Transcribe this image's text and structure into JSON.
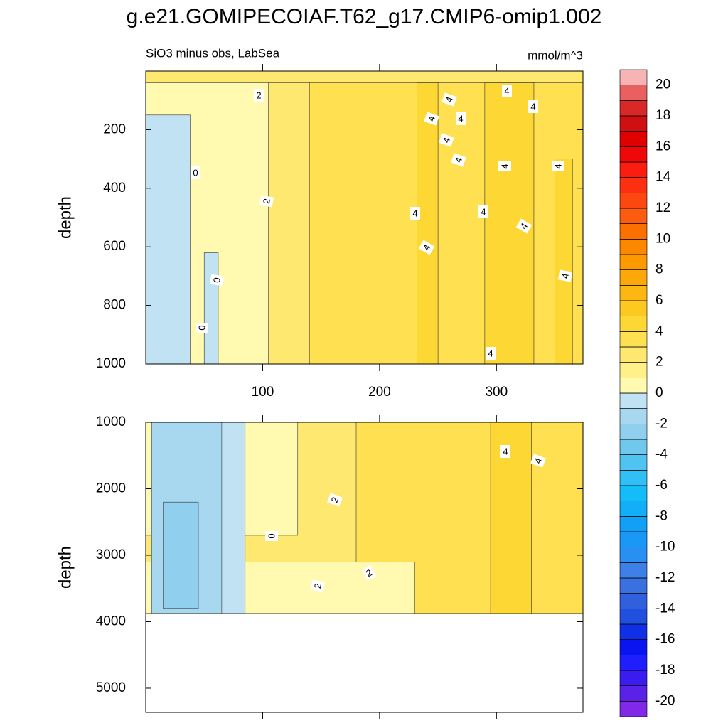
{
  "title": "g.e21.GOMIPECOIAF.T62_g17.CMIP6-omip1.002",
  "chart_data": [
    {
      "type": "contour",
      "subtitle_left": "SiO3 minus obs, LabSea",
      "subtitle_right": "mmol/m^3",
      "y_label": "depth",
      "xlim": [
        0,
        374
      ],
      "xticks": [
        100,
        200,
        300
      ],
      "ylim": [
        0,
        1000
      ],
      "yticks": [
        200,
        400,
        600,
        800,
        1000
      ],
      "fields": [
        {
          "x": [
            0,
            374
          ],
          "y": [
            0,
            1000
          ],
          "value": 3.5
        },
        {
          "x": [
            0,
            140
          ],
          "y": [
            0,
            1000
          ],
          "value": 2.5
        },
        {
          "x": [
            0,
            105
          ],
          "y": [
            0,
            1000
          ],
          "value": 0.5
        },
        {
          "x": [
            0,
            38
          ],
          "y": [
            150,
            1000
          ],
          "value": -0.5
        },
        {
          "x": [
            50,
            62
          ],
          "y": [
            620,
            1000
          ],
          "value": -0.5
        },
        {
          "x": [
            0,
            374
          ],
          "y": [
            0,
            40
          ],
          "value": 2.5
        },
        {
          "x": [
            232,
            250
          ],
          "y": [
            40,
            1000
          ],
          "value": 4.5
        },
        {
          "x": [
            290,
            332
          ],
          "y": [
            40,
            1000
          ],
          "value": 4.5
        },
        {
          "x": [
            350,
            365
          ],
          "y": [
            300,
            1000
          ],
          "value": 4.5
        }
      ],
      "contour_labels": [
        2,
        4,
        4,
        4,
        4,
        4,
        4,
        4,
        4,
        4,
        4,
        4,
        4,
        4,
        4,
        4,
        0,
        0,
        0,
        2
      ]
    },
    {
      "type": "contour",
      "y_label": "depth",
      "xlim": [
        0,
        374
      ],
      "xticks": [
        100,
        200,
        300
      ],
      "ylim": [
        1000,
        5364
      ],
      "yticks": [
        1000,
        2000,
        3000,
        4000,
        5000
      ],
      "fields": [
        {
          "x": [
            0,
            374
          ],
          "y": [
            1000,
            3875
          ],
          "value": 3.5
        },
        {
          "x": [
            0,
            180
          ],
          "y": [
            1000,
            3875
          ],
          "value": 2.5
        },
        {
          "x": [
            0,
            130
          ],
          "y": [
            1000,
            2700
          ],
          "value": 0.5
        },
        {
          "x": [
            0,
            230
          ],
          "y": [
            3100,
            3875
          ],
          "value": 0.5
        },
        {
          "x": [
            5,
            85
          ],
          "y": [
            1000,
            3875
          ],
          "value": -0.5
        },
        {
          "x": [
            5,
            65
          ],
          "y": [
            1000,
            3875
          ],
          "value": -1.5
        },
        {
          "x": [
            15,
            45
          ],
          "y": [
            2200,
            3800
          ],
          "value": -2.5
        },
        {
          "x": [
            295,
            330
          ],
          "y": [
            1000,
            3875
          ],
          "value": 4.5
        }
      ],
      "contour_labels": [
        4,
        4,
        2,
        2,
        2,
        0
      ]
    }
  ],
  "colorbar": {
    "levels": [
      -20,
      -19,
      -18,
      -17,
      -16,
      -15,
      -14,
      -13,
      -12,
      -11,
      -10,
      -9,
      -8,
      -7,
      -6,
      -5,
      -4,
      -3,
      -2,
      -1,
      0,
      1,
      2,
      3,
      4,
      5,
      6,
      7,
      8,
      9,
      10,
      11,
      12,
      13,
      14,
      15,
      16,
      17,
      18,
      19,
      20
    ],
    "labels": [
      -20,
      -18,
      -16,
      -14,
      -12,
      -10,
      -8,
      -6,
      -4,
      -2,
      0,
      2,
      4,
      6,
      8,
      10,
      12,
      14,
      16,
      18,
      20
    ],
    "colors": [
      "#8228e8",
      "#5a22e8",
      "#3a1cf0",
      "#1e1eff",
      "#0a14f0",
      "#1030e8",
      "#2050e0",
      "#3060dc",
      "#3a70e0",
      "#3c80e8",
      "#2890f0",
      "#1a98f5",
      "#10a0f8",
      "#12aef8",
      "#14bcf8",
      "#30c0f5",
      "#50c4f0",
      "#70c8ec",
      "#90d0ee",
      "#a8d8ef",
      "#c0e2f2",
      "#fffab0",
      "#fff08a",
      "#ffe870",
      "#fee050",
      "#fdd835",
      "#fdc820",
      "#fcb810",
      "#fca808",
      "#fc9800",
      "#fc8800",
      "#fc7000",
      "#fc5c10",
      "#fc4810",
      "#fc3010",
      "#fc1c10",
      "#f00808",
      "#e00000",
      "#d01010",
      "#d82828",
      "#e86060",
      "#f8b4b4"
    ]
  }
}
